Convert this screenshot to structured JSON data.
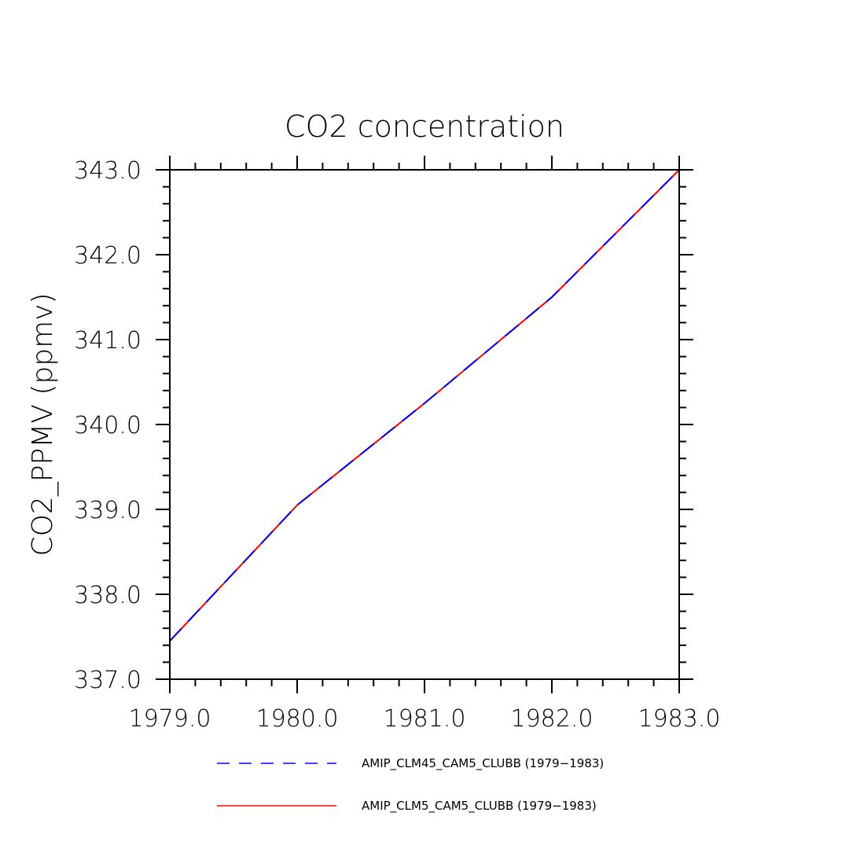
{
  "chart_data": {
    "type": "line",
    "title": "CO2  concentration",
    "xlabel": "",
    "ylabel": "CO2_PPMV   (ppmv)",
    "xlim": [
      1979.0,
      1983.0
    ],
    "ylim": [
      337.0,
      343.0
    ],
    "x_ticks": [
      "1979.0",
      "1980.0",
      "1981.0",
      "1982.0",
      "1983.0"
    ],
    "y_ticks": [
      "337.0",
      "338.0",
      "339.0",
      "340.0",
      "341.0",
      "342.0",
      "343.0"
    ],
    "grid": false,
    "legend_position": "bottom",
    "x": [
      1979.0,
      1980.0,
      1981.0,
      1982.0,
      1983.0
    ],
    "series": [
      {
        "name": "AMIP_CLM45_CAM5_CLUBB (1979−1983)",
        "color": "#0000ff",
        "style": "dashed",
        "values": [
          337.45,
          339.05,
          340.25,
          341.5,
          343.0
        ]
      },
      {
        "name": "AMIP_CLM5_CAM5_CLUBB (1979−1983)",
        "color": "#ff0000",
        "style": "solid",
        "values": [
          337.45,
          339.05,
          340.25,
          341.5,
          343.0
        ]
      }
    ]
  }
}
